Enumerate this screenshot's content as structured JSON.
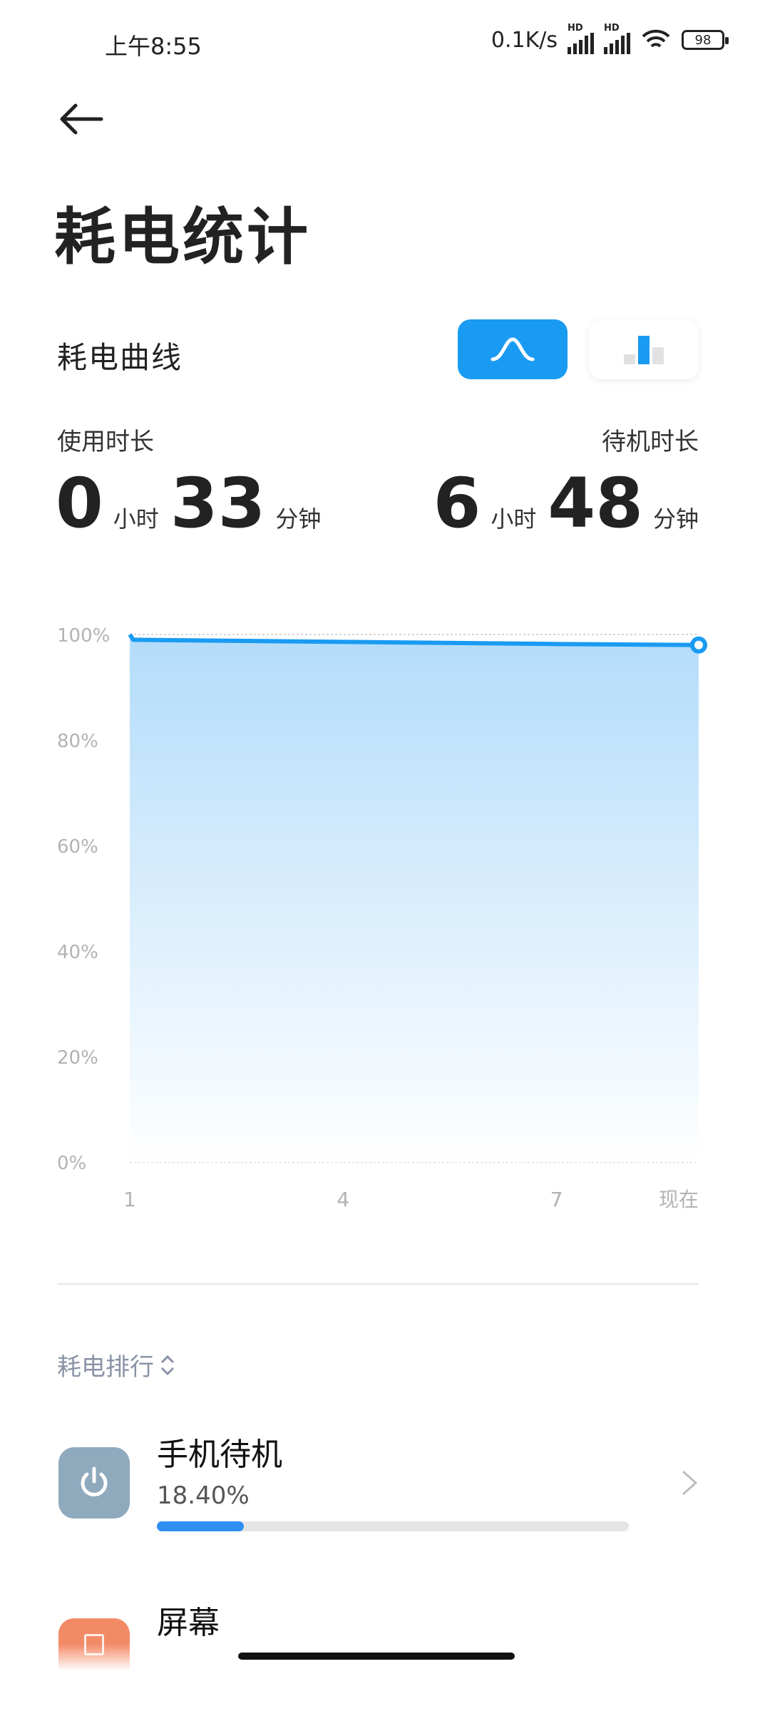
{
  "status_bar": {
    "time": "上午8:55",
    "net_speed": "0.1K/s",
    "hd": "HD",
    "battery": "98"
  },
  "header": {
    "title": "耗电统计"
  },
  "curve_section": {
    "label": "耗电曲线"
  },
  "usage": {
    "label": "使用时长",
    "hours": "0",
    "hour_unit": "小时",
    "minutes": "33",
    "minute_unit": "分钟"
  },
  "standby": {
    "label": "待机时长",
    "hours": "6",
    "hour_unit": "小时",
    "minutes": "48",
    "minute_unit": "分钟"
  },
  "chart_data": {
    "type": "area",
    "x": [
      "1",
      "4",
      "7",
      "现在"
    ],
    "y_ticks": [
      "100%",
      "80%",
      "60%",
      "40%",
      "20%",
      "0%"
    ],
    "ylim": [
      0,
      100
    ],
    "series": [
      {
        "points": [
          [
            0,
            100
          ],
          [
            0.05,
            99
          ],
          [
            3,
            98.6
          ],
          [
            6,
            98.2
          ],
          [
            8,
            98
          ]
        ]
      }
    ],
    "grid": true,
    "color": "#1a9bf2"
  },
  "ranking": {
    "label": "耗电排行",
    "items": [
      {
        "name": "手机待机",
        "percent_text": "18.40%",
        "percent": 18.4,
        "color": "#8fa9bd"
      },
      {
        "name": "屏幕",
        "color": "#f38a66"
      }
    ]
  }
}
